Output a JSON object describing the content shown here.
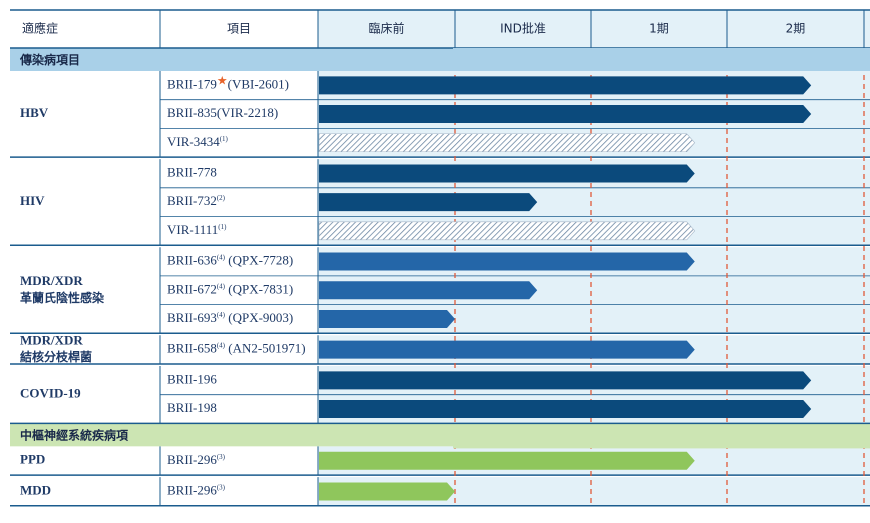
{
  "chart_data": {
    "type": "gantt",
    "title": "",
    "columns": [
      "適應症",
      "項目",
      "臨床前",
      "IND批准",
      "1期",
      "2期"
    ],
    "stages": [
      "臨床前",
      "IND批准",
      "1期",
      "2期"
    ],
    "sections": [
      {
        "label": "傳染病項目",
        "color": "#a9d0e8",
        "groups": [
          {
            "indication": [
              "HBV"
            ],
            "rows": [
              {
                "name": "BRII-179",
                "star": true,
                "sup": "",
                "alias": "(VBI-2601)",
                "progress": 3.6,
                "style": "navy"
              },
              {
                "name": "BRII-835",
                "star": false,
                "sup": "",
                "alias": "(VIR-2218)",
                "progress": 3.6,
                "style": "navy"
              },
              {
                "name": "VIR-3434",
                "star": false,
                "sup": "(1)",
                "alias": "",
                "progress": 2.75,
                "style": "hatch"
              }
            ]
          },
          {
            "indication": [
              "HIV"
            ],
            "rows": [
              {
                "name": "BRII-778",
                "star": false,
                "sup": "",
                "alias": "",
                "progress": 2.75,
                "style": "navy"
              },
              {
                "name": "BRII-732",
                "star": false,
                "sup": "(2)",
                "alias": "",
                "progress": 1.6,
                "style": "navy"
              },
              {
                "name": "VIR-1111",
                "star": false,
                "sup": "(1)",
                "alias": "",
                "progress": 2.75,
                "style": "hatch"
              }
            ]
          },
          {
            "indication": [
              "MDR/XDR",
              "革蘭氏陰性感染"
            ],
            "rows": [
              {
                "name": "BRII-636",
                "star": false,
                "sup": "(4)",
                "alias": " (QPX-7728)",
                "progress": 2.75,
                "style": "blue"
              },
              {
                "name": "BRII-672",
                "star": false,
                "sup": "(4)",
                "alias": " (QPX-7831)",
                "progress": 1.6,
                "style": "blue"
              },
              {
                "name": "BRII-693",
                "star": false,
                "sup": "(4)",
                "alias": " (QPX-9003)",
                "progress": 1.0,
                "style": "blue"
              }
            ]
          },
          {
            "indication": [
              "MDR/XDR",
              "結核分枝桿菌"
            ],
            "rows": [
              {
                "name": "BRII-658",
                "star": false,
                "sup": "(4)",
                "alias": " (AN2-501971)",
                "progress": 2.75,
                "style": "blue"
              }
            ]
          },
          {
            "indication": [
              "COVID-19"
            ],
            "rows": [
              {
                "name": "BRII-196",
                "star": false,
                "sup": "",
                "alias": "",
                "progress": 3.6,
                "style": "navy"
              },
              {
                "name": "BRII-198",
                "star": false,
                "sup": "",
                "alias": "",
                "progress": 3.6,
                "style": "navy"
              }
            ]
          }
        ]
      },
      {
        "label": "中樞神經系統疾病項",
        "color": "#cce5b3",
        "groups": [
          {
            "indication": [
              "PPD"
            ],
            "rows": [
              {
                "name": "BRII-296",
                "star": false,
                "sup": "(3)",
                "alias": "",
                "progress": 2.75,
                "style": "green"
              }
            ]
          },
          {
            "indication": [
              "MDD"
            ],
            "rows": [
              {
                "name": "BRII-296",
                "star": false,
                "sup": "(3)",
                "alias": "",
                "progress": 1.0,
                "style": "green"
              }
            ]
          }
        ]
      }
    ],
    "colors": {
      "navy": "#0b4a7c",
      "blue": "#2466a8",
      "green": "#8fc65c",
      "hatch": "#6c87a3",
      "star": "#e8642a",
      "stage_bg": "#e3f1f8",
      "divider": "#1b5c8e",
      "dashed": "#e05a3a"
    }
  }
}
